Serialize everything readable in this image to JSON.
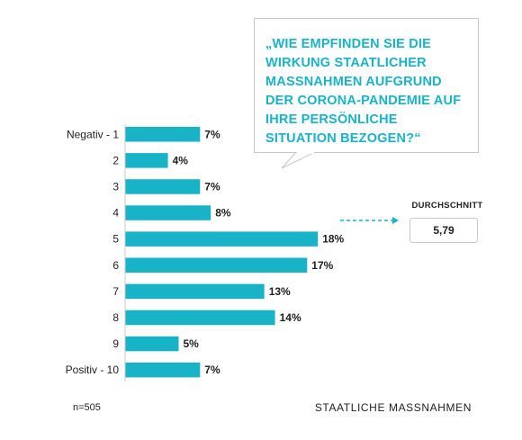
{
  "chart_data": {
    "type": "bar",
    "orientation": "horizontal",
    "categories": [
      "Negativ - 1",
      "2",
      "3",
      "4",
      "5",
      "6",
      "7",
      "8",
      "9",
      "Positiv - 10"
    ],
    "values": [
      7,
      4,
      7,
      8,
      18,
      17,
      13,
      14,
      5,
      7
    ],
    "value_labels": [
      "7%",
      "4%",
      "7%",
      "8%",
      "18%",
      "17%",
      "13%",
      "14%",
      "5%",
      "7%"
    ],
    "unit": "%",
    "bar_color": "#19b3c8",
    "title": "„WIE EMPFINDEN SIE DIE WIRKUNG STAATLICHER MASSNAHMEN AUFGRUND DER CORONA-PANDEMIE AUF IHRE PERSÖNLICHE SITUATION BEZOGEN?“",
    "average": {
      "label": "DURCHSCHNITT",
      "value": "5,79"
    },
    "xlabel": "",
    "ylabel": "",
    "grid": false
  },
  "footer": {
    "sample_size": "n=505",
    "source": "STAATLICHE MASSNAHMEN"
  },
  "colors": {
    "accent": "#19b3c8",
    "text": "#1f1f1f",
    "border": "#c9c9c9"
  }
}
